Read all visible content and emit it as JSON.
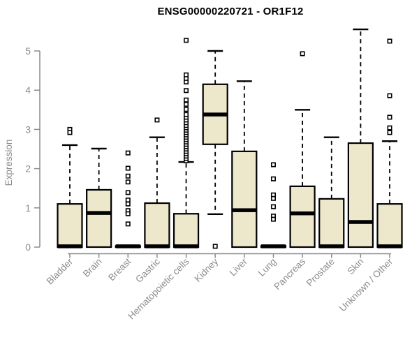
{
  "chart_data": {
    "type": "boxplot",
    "title": "ENSG00000220721 - OR1F12",
    "ylabel": "Expression",
    "xlabel": "",
    "ylim": [
      0,
      5
    ],
    "yticks": [
      0,
      1,
      2,
      3,
      4,
      5
    ],
    "grid": false,
    "legend": "none",
    "categories": [
      "Bladder",
      "Brain",
      "Breast",
      "Gastric",
      "Hematopoietic cells",
      "Kidney",
      "Liver",
      "Lung",
      "Pancreas",
      "Prostate",
      "Skin",
      "Unknown / Other"
    ],
    "series": [
      {
        "name": "Bladder",
        "whisker_low": 0,
        "q1": 0,
        "median": 0.02,
        "q3": 1.1,
        "whisker_high": 2.6,
        "outliers": [
          3.0,
          2.92
        ]
      },
      {
        "name": "Brain",
        "whisker_low": 0,
        "q1": 0,
        "median": 0.87,
        "q3": 1.46,
        "whisker_high": 2.51,
        "outliers": []
      },
      {
        "name": "Breast",
        "whisker_low": 0,
        "q1": 0,
        "median": 0.02,
        "q3": 0.03,
        "whisker_high": 0.03,
        "outliers": [
          2.4,
          2.01,
          1.81,
          1.66,
          1.39,
          1.2,
          1.1,
          0.93,
          0.85,
          0.59
        ]
      },
      {
        "name": "Gastric",
        "whisker_low": 0,
        "q1": 0,
        "median": 0.02,
        "q3": 1.12,
        "whisker_high": 2.8,
        "outliers": [
          3.24
        ]
      },
      {
        "name": "Hematopoietic cells",
        "whisker_low": 0,
        "q1": 0,
        "median": 0.02,
        "q3": 0.85,
        "whisker_high": 2.17,
        "outliers": [
          2.2,
          2.26,
          2.32,
          2.38,
          2.44,
          2.5,
          2.56,
          2.62,
          2.68,
          2.74,
          2.8,
          2.86,
          2.92,
          2.98,
          3.04,
          3.1,
          3.17,
          3.24,
          3.31,
          3.38,
          3.51,
          3.64,
          3.75,
          3.99,
          4.21,
          4.3,
          4.39,
          5.27
        ]
      },
      {
        "name": "Kidney",
        "whisker_low": 0.84,
        "q1": 2.62,
        "median": 3.38,
        "q3": 4.15,
        "whisker_high": 5.0,
        "outliers": [
          0.02
        ]
      },
      {
        "name": "Liver",
        "whisker_low": 0,
        "q1": 0,
        "median": 0.94,
        "q3": 2.44,
        "whisker_high": 4.23,
        "outliers": []
      },
      {
        "name": "Lung",
        "whisker_low": 0,
        "q1": 0,
        "median": 0.02,
        "q3": 0.03,
        "whisker_high": 0.03,
        "outliers": [
          2.1,
          1.74,
          1.33,
          1.24,
          1.03,
          0.79,
          0.71
        ]
      },
      {
        "name": "Pancreas",
        "whisker_low": 0,
        "q1": 0,
        "median": 0.86,
        "q3": 1.55,
        "whisker_high": 3.5,
        "outliers": [
          4.93
        ]
      },
      {
        "name": "Prostate",
        "whisker_low": 0,
        "q1": 0,
        "median": 0.02,
        "q3": 1.23,
        "whisker_high": 2.8,
        "outliers": []
      },
      {
        "name": "Skin",
        "whisker_low": 0,
        "q1": 0,
        "median": 0.64,
        "q3": 2.65,
        "whisker_high": 5.55,
        "outliers": []
      },
      {
        "name": "Unknown / Other",
        "whisker_low": 0,
        "q1": 0,
        "median": 0.02,
        "q3": 1.1,
        "whisker_high": 2.7,
        "outliers": [
          5.25,
          3.86,
          3.31,
          3.04,
          2.92
        ]
      }
    ],
    "colors": {
      "box_fill": "#EDE7CC",
      "box_border": "#000000",
      "median": "#000000",
      "whisker": "#000000",
      "outlier_stroke": "#000000",
      "outlier_fill": "#FFFFFF",
      "axis": "#8C8C8C",
      "title": "#000000",
      "background": "#FFFFFF"
    }
  }
}
